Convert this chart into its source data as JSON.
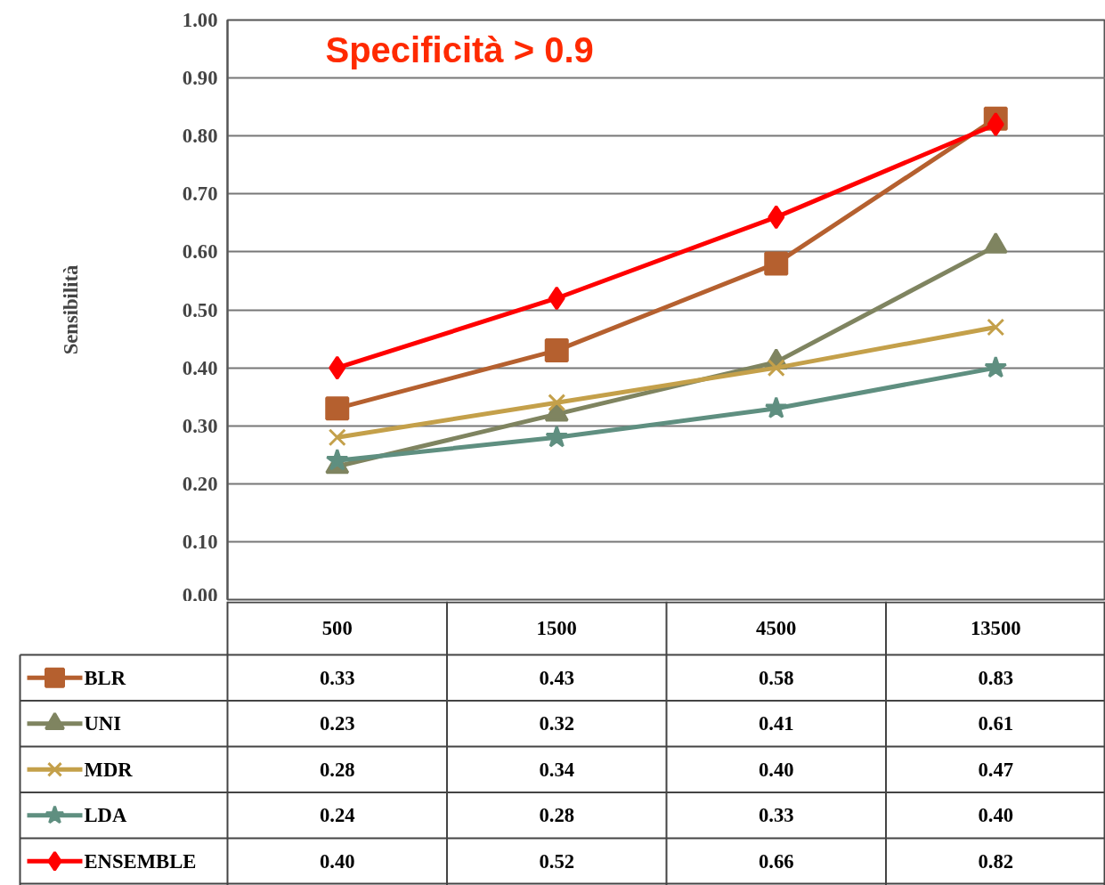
{
  "chart_data": {
    "type": "line",
    "title": "Specificità > 0.9",
    "ylabel": "Sensibilità",
    "categories": [
      "500",
      "1500",
      "4500",
      "13500"
    ],
    "series": [
      {
        "name": "BLR",
        "color": "#b5602f",
        "marker": "square",
        "values": [
          0.33,
          0.43,
          0.58,
          0.83
        ],
        "value_labels": [
          "0.33",
          "0.43",
          "0.58",
          "0.83"
        ]
      },
      {
        "name": "UNI",
        "color": "#7f8460",
        "marker": "triangle",
        "values": [
          0.23,
          0.32,
          0.41,
          0.61
        ],
        "value_labels": [
          "0.23",
          "0.32",
          "0.41",
          "0.61"
        ]
      },
      {
        "name": "MDR",
        "color": "#c4a04a",
        "marker": "cross",
        "values": [
          0.28,
          0.34,
          0.4,
          0.47
        ],
        "value_labels": [
          "0.28",
          "0.34",
          "0.40",
          "0.47"
        ]
      },
      {
        "name": "LDA",
        "color": "#5f8f80",
        "marker": "star",
        "values": [
          0.24,
          0.28,
          0.33,
          0.4
        ],
        "value_labels": [
          "0.24",
          "0.28",
          "0.33",
          "0.40"
        ]
      },
      {
        "name": "ENSEMBLE",
        "color": "#ff0000",
        "marker": "diamond",
        "values": [
          0.4,
          0.52,
          0.66,
          0.82
        ],
        "value_labels": [
          "0.40",
          "0.52",
          "0.66",
          "0.82"
        ]
      }
    ],
    "ylim": [
      0,
      1
    ],
    "yticks": [
      {
        "value": 0,
        "label": "0.00"
      },
      {
        "value": 0.1,
        "label": "0.10"
      },
      {
        "value": 0.2,
        "label": "0.20"
      },
      {
        "value": 0.3,
        "label": "0.30"
      },
      {
        "value": 0.4,
        "label": "0.40"
      },
      {
        "value": 0.5,
        "label": "0.50"
      },
      {
        "value": 0.6,
        "label": "0.60"
      },
      {
        "value": 0.7,
        "label": "0.70"
      },
      {
        "value": 0.8,
        "label": "0.80"
      },
      {
        "value": 0.9,
        "label": "0.90"
      },
      {
        "value": 1,
        "label": "1.00"
      }
    ],
    "grid": "y",
    "legend": "bottom"
  }
}
